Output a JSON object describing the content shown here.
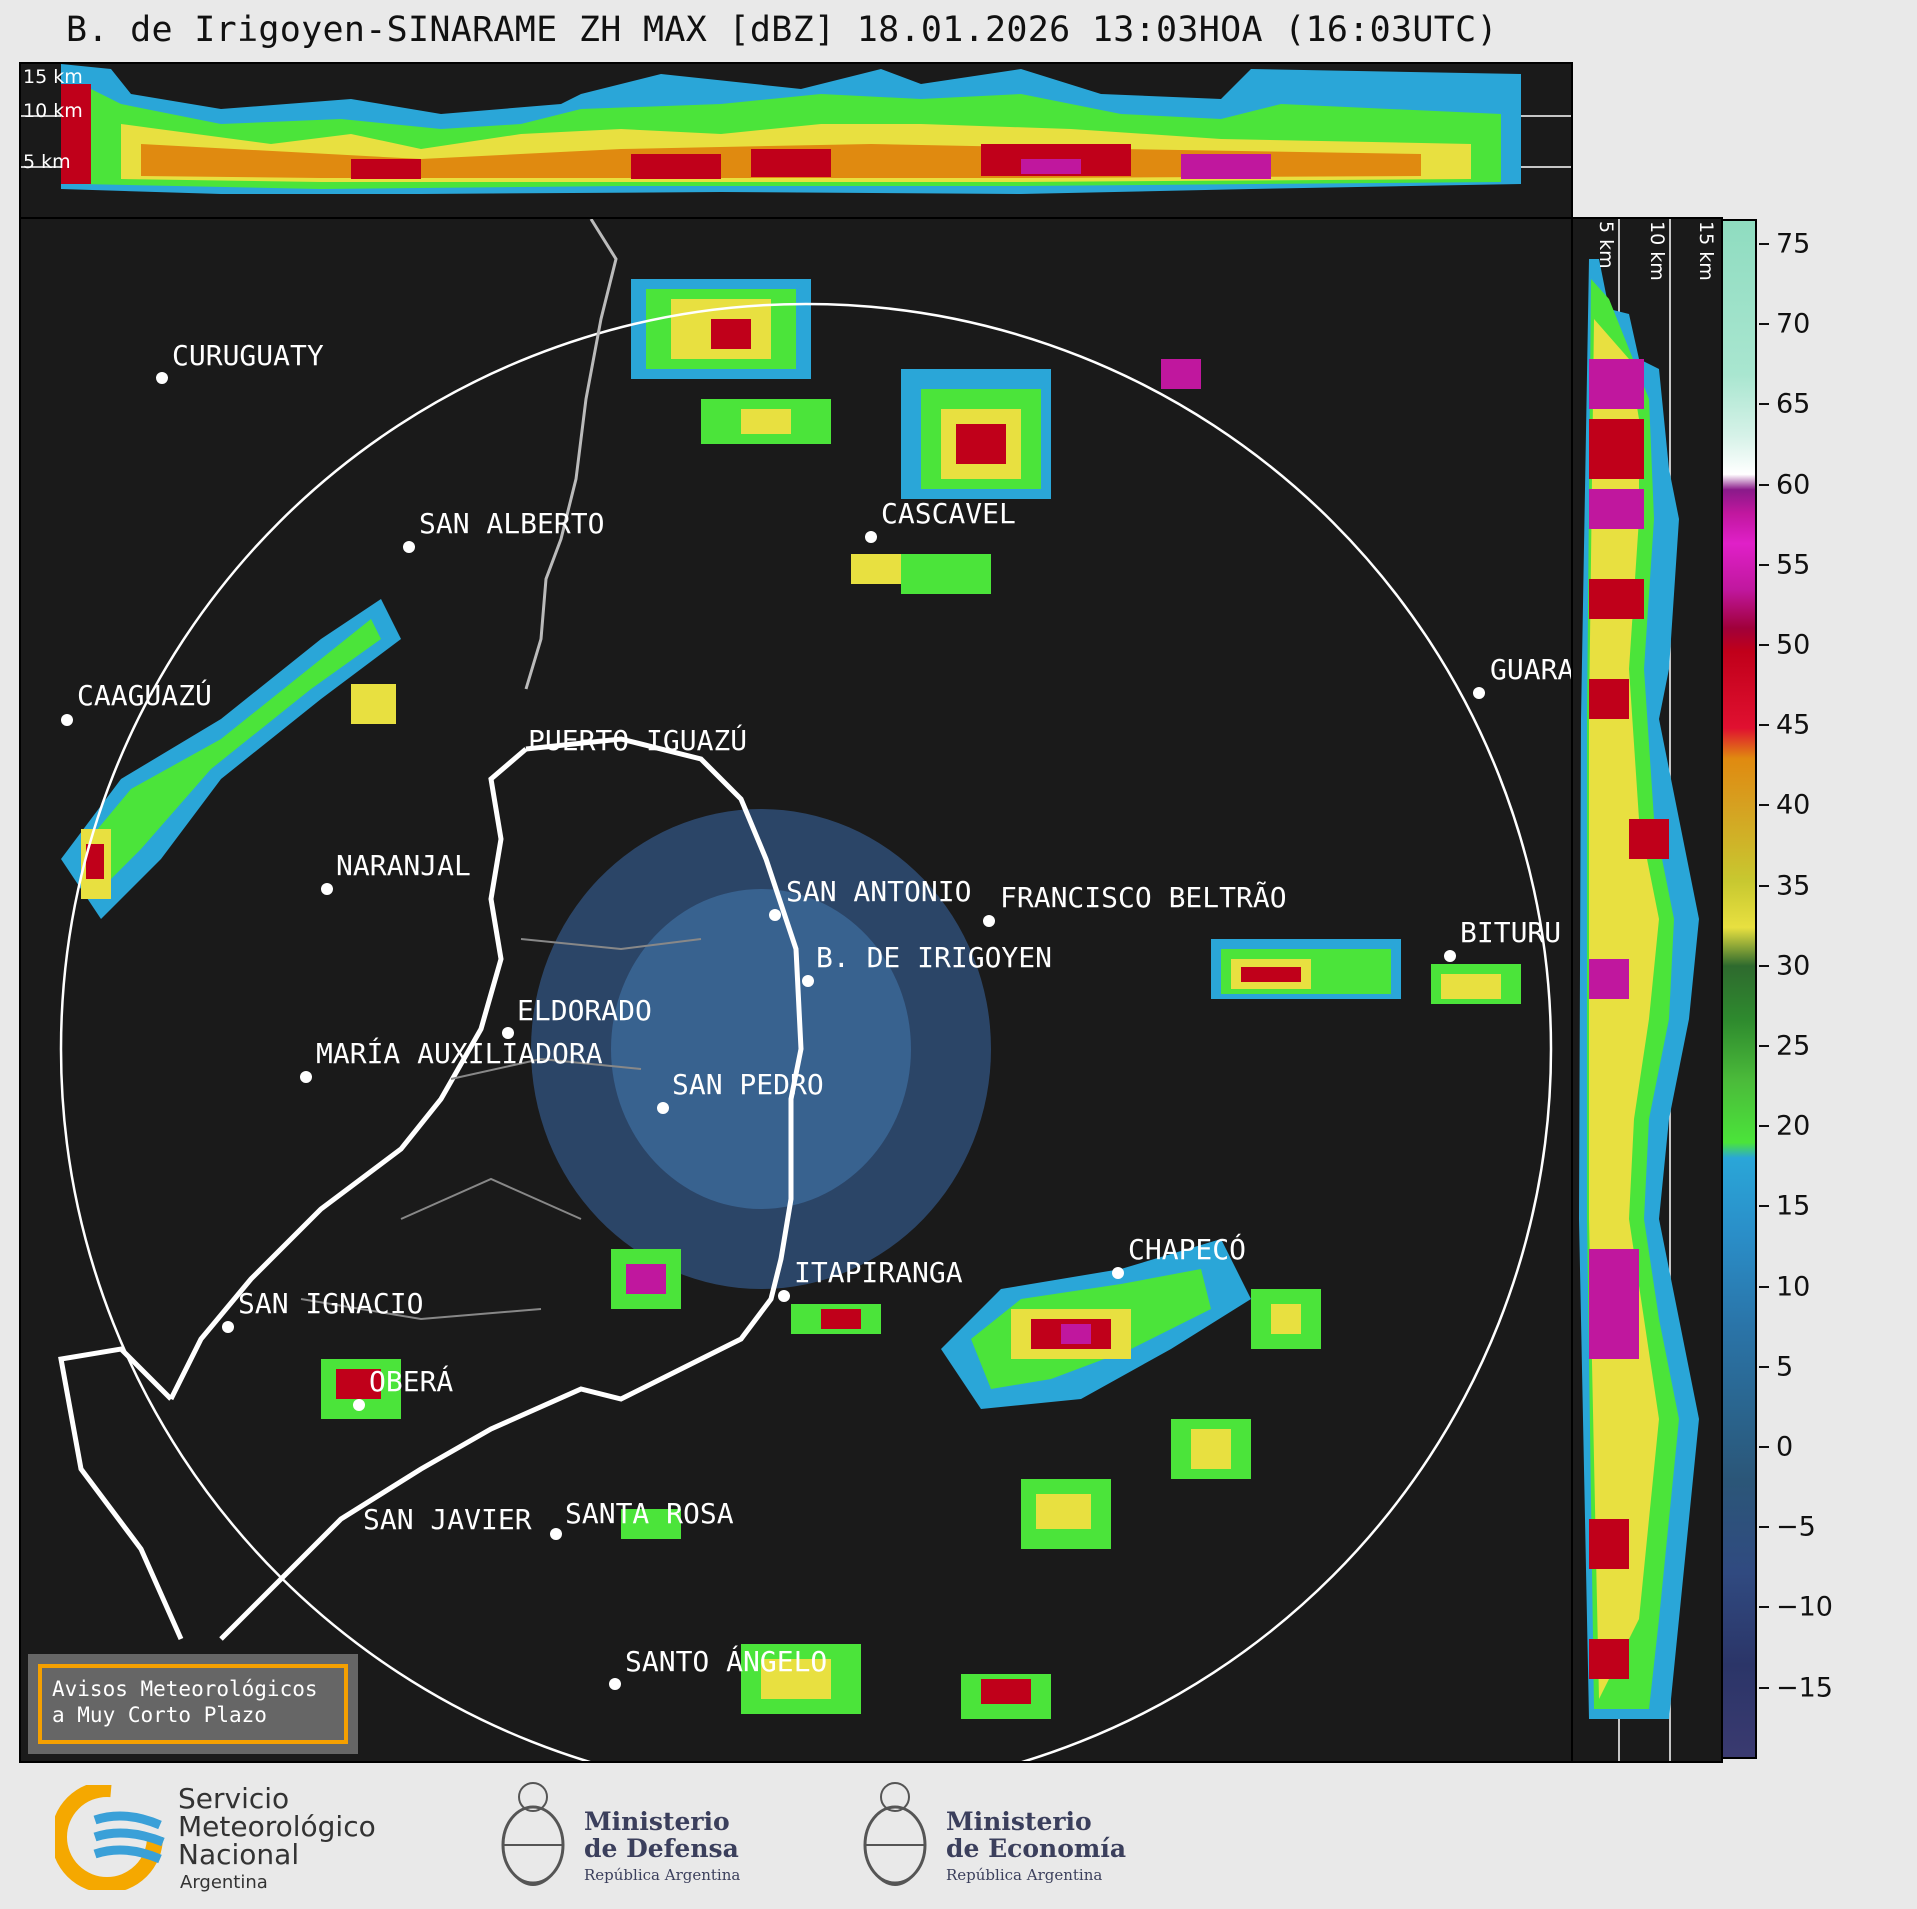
{
  "title": "B. de Irigoyen-SINARAME ZH MAX [dBZ] 18.01.2026 13:03HOA (16:03UTC)",
  "top_panel": {
    "height_labels": [
      "15 km",
      "10 km",
      "5 km"
    ]
  },
  "side_panel": {
    "height_labels": [
      "5 km",
      "10 km",
      "15 km"
    ]
  },
  "colorbar": {
    "unit": "dBZ",
    "ticks": [
      "75",
      "70",
      "65",
      "60",
      "55",
      "50",
      "45",
      "40",
      "35",
      "30",
      "25",
      "20",
      "15",
      "10",
      "5",
      "0",
      "−5",
      "−10",
      "−15"
    ],
    "colors": {
      "strong": "#8fdcc0",
      "white": "#ffffff",
      "magenta": "#c0179e",
      "red": "#c0001a",
      "orange": "#e08a10",
      "yellow": "#e8e040",
      "green": "#2e8a2e",
      "light_green": "#4be43a",
      "blue": "#2aa6d8",
      "dark_blue": "#2b3568"
    }
  },
  "cities": [
    {
      "name": "CURUGUATY"
    },
    {
      "name": "SAN ALBERTO"
    },
    {
      "name": "CAAGUAZÚ"
    },
    {
      "name": "CASCAVEL"
    },
    {
      "name": "GUARA"
    },
    {
      "name": "PUERTO IGUAZÚ"
    },
    {
      "name": "NARANJAL"
    },
    {
      "name": "SAN ANTONIO"
    },
    {
      "name": "FRANCISCO BELTRÃO"
    },
    {
      "name": "BITURU"
    },
    {
      "name": "B. DE IRIGOYEN"
    },
    {
      "name": "ELDORADO"
    },
    {
      "name": "MARÍA AUXILIADORA"
    },
    {
      "name": "SAN PEDRO"
    },
    {
      "name": "ITAPIRANGA"
    },
    {
      "name": "CHAPECÓ"
    },
    {
      "name": "SAN IGNACIO"
    },
    {
      "name": "OBERÁ"
    },
    {
      "name": "SAN JAVIER"
    },
    {
      "name": "SANTA ROSA"
    },
    {
      "name": "SANTO ÁNGELO"
    }
  ],
  "aviso": {
    "line1": "Avisos Meteorológicos",
    "line2": "a Muy Corto Plazo"
  },
  "footer": {
    "smn": {
      "line1": "Servicio",
      "line2": "Meteorológico",
      "line3": "Nacional",
      "line4": "Argentina"
    },
    "defensa": {
      "line1": "Ministerio",
      "line2": "de Defensa",
      "line3": "República Argentina"
    },
    "economia": {
      "line1": "Ministerio",
      "line2": "de Economía",
      "line3": "República Argentina"
    }
  }
}
